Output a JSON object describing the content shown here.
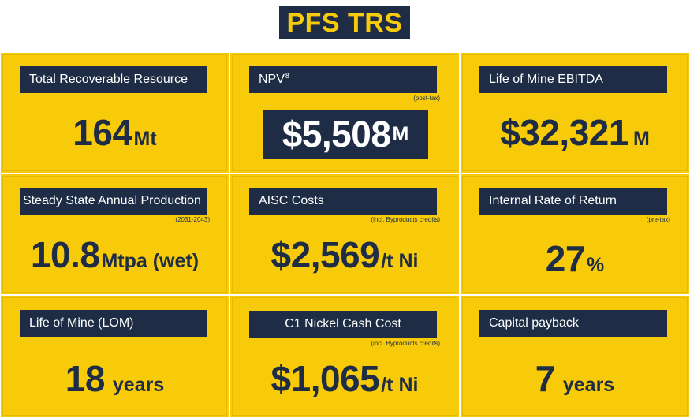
{
  "title": "PFS TRS",
  "cells": [
    {
      "label": "Total Recoverable Resource",
      "note": "",
      "value": "164",
      "unit": "Mt"
    },
    {
      "label": "NPV",
      "label_sup": "8",
      "note": "(post-tax)",
      "value": "$5,508",
      "unit": "M"
    },
    {
      "label": "Life of Mine EBITDA",
      "note": "",
      "value": "$32,321",
      "unit": "M"
    },
    {
      "label": "Steady State Annual Production",
      "note": "(2031-2043)",
      "value": "10.8",
      "unit": "Mtpa (wet)"
    },
    {
      "label": "AISC Costs",
      "note": "(incl. Byproducts credits)",
      "value": "$2,569",
      "unit": "/t Ni"
    },
    {
      "label": "Internal Rate of Return",
      "note": "(pre-tax)",
      "value": "27",
      "unit": "%"
    },
    {
      "label": "Life of Mine (LOM)",
      "note": "",
      "value": "18",
      "unit": "years"
    },
    {
      "label": "C1 Nickel Cash Cost",
      "note": "(incl. Byproducts credits)",
      "value": "$1,065",
      "unit": "/t Ni"
    },
    {
      "label": "Capital payback",
      "note": "",
      "value": "7",
      "unit": "years"
    }
  ]
}
